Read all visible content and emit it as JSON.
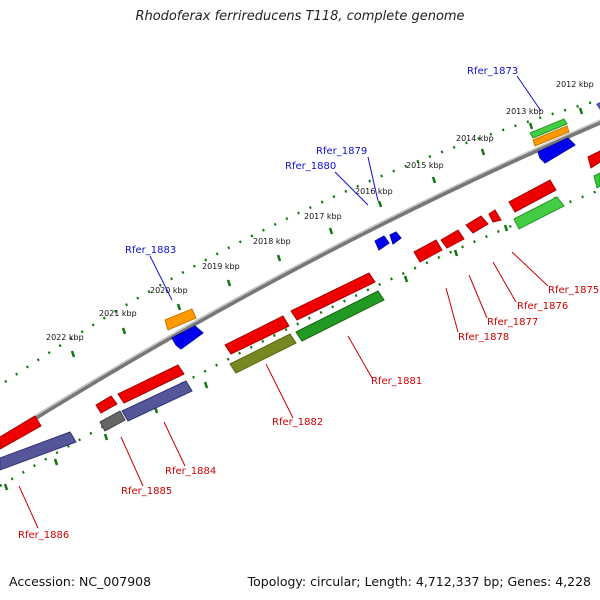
{
  "title": "Rhodoferax ferrireducens T118, complete genome",
  "footer": {
    "accession": "Accession: NC_007908",
    "summary": "Topology: circular; Length: 4,712,337 bp; Genes: 4,228"
  },
  "colors": {
    "backbone": "#8a8a8a",
    "tick": "#117711",
    "label_top": "#1010cc",
    "label_bottom": "#cc0000"
  },
  "scale_labels": [
    "2012 kbp",
    "2013 kbp",
    "2014 kbp",
    "2015 kbp",
    "2016 kbp",
    "2017 kbp",
    "2018 kbp",
    "2019 kbp",
    "2020 kbp",
    "2021 kbp",
    "2022 kbp"
  ],
  "gene_labels_top": [
    "Rfer_1873",
    "Rfer_1879",
    "Rfer_1880",
    "Rfer_1883"
  ],
  "gene_labels_bottom": [
    "Rfer_1875",
    "Rfer_1876",
    "Rfer_1877",
    "Rfer_1878",
    "Rfer_1881",
    "Rfer_1882",
    "Rfer_1884",
    "Rfer_1885",
    "Rfer_1886"
  ]
}
